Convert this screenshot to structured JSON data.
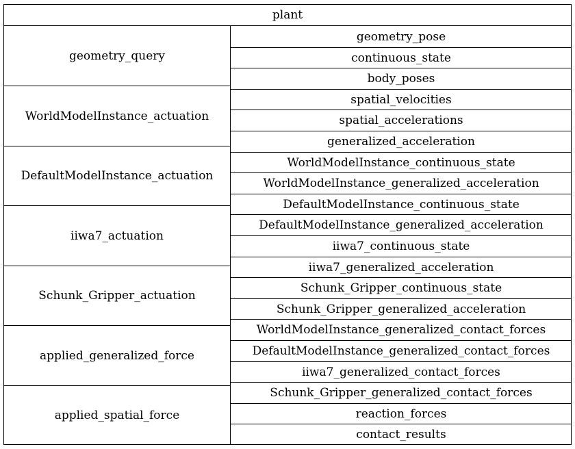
{
  "block": {
    "name": "plant",
    "input_ports": [
      "geometry_query",
      "WorldModelInstance_actuation",
      "DefaultModelInstance_actuation",
      "iiwa7_actuation",
      "Schunk_Gripper_actuation",
      "applied_generalized_force",
      "applied_spatial_force"
    ],
    "output_ports": [
      "geometry_pose",
      "continuous_state",
      "body_poses",
      "spatial_velocities",
      "spatial_accelerations",
      "generalized_acceleration",
      "WorldModelInstance_continuous_state",
      "WorldModelInstance_generalized_acceleration",
      "DefaultModelInstance_continuous_state",
      "DefaultModelInstance_generalized_acceleration",
      "iiwa7_continuous_state",
      "iiwa7_generalized_acceleration",
      "Schunk_Gripper_continuous_state",
      "Schunk_Gripper_generalized_acceleration",
      "WorldModelInstance_generalized_contact_forces",
      "DefaultModelInstance_generalized_contact_forces",
      "iiwa7_generalized_contact_forces",
      "Schunk_Gripper_generalized_contact_forces",
      "reaction_forces",
      "contact_results"
    ]
  }
}
